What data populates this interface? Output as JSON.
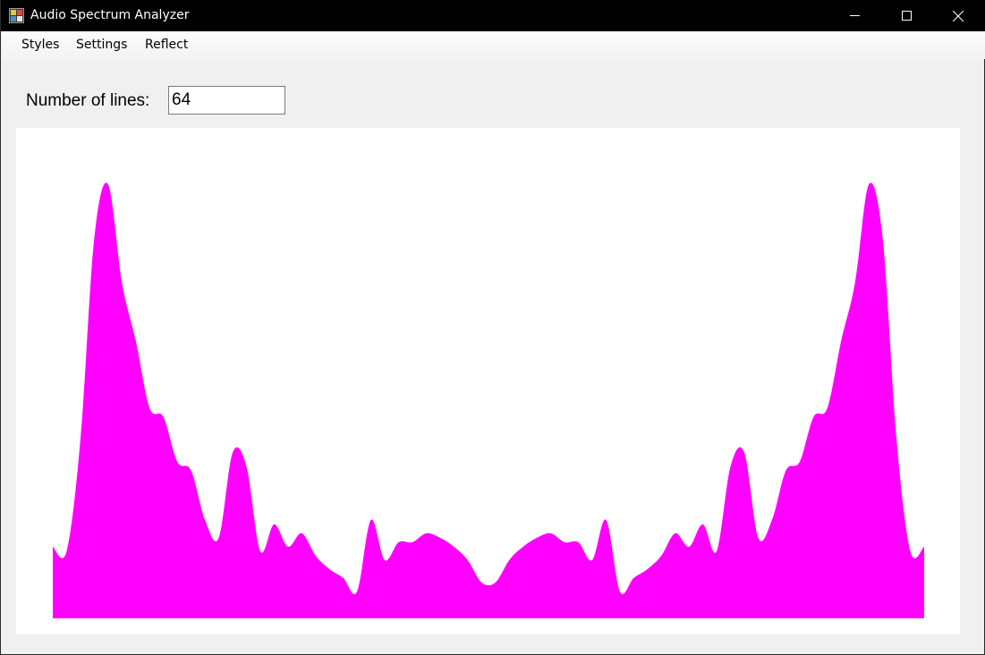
{
  "window": {
    "title": "Audio Spectrum Analyzer",
    "icons": {
      "app": "app-icon",
      "minimize": "minimize-icon",
      "maximize": "maximize-icon",
      "close": "close-icon"
    }
  },
  "menu": {
    "items": [
      "Styles",
      "Settings",
      "Reflect"
    ]
  },
  "controls": {
    "lines_label": "Number of lines:",
    "lines_value": "64"
  },
  "spectrum": {
    "fill_color": "#ff00ff",
    "background_color": "#ffffff",
    "mirrored": true,
    "levels": [
      0.16,
      0.15,
      0.4,
      0.85,
      0.97,
      0.75,
      0.62,
      0.47,
      0.45,
      0.35,
      0.33,
      0.22,
      0.18,
      0.37,
      0.34,
      0.15,
      0.21,
      0.16,
      0.19,
      0.14,
      0.11,
      0.09,
      0.06,
      0.22,
      0.13,
      0.17,
      0.17,
      0.19,
      0.18,
      0.16,
      0.13,
      0.08
    ]
  }
}
